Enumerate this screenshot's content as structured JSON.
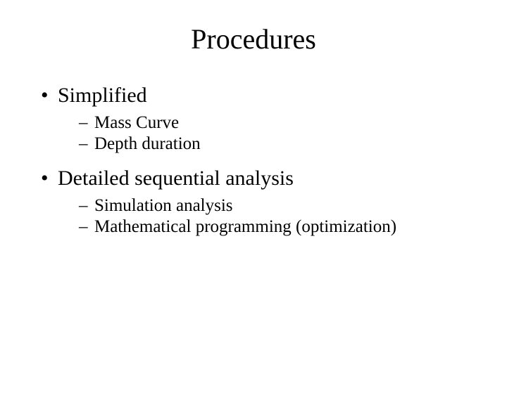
{
  "slide": {
    "title": "Procedures",
    "items": [
      {
        "label": "Simplified",
        "sub": [
          "Mass Curve",
          "Depth duration"
        ]
      },
      {
        "label": "Detailed sequential analysis",
        "sub": [
          "Simulation analysis",
          "Mathematical programming (optimization)"
        ]
      }
    ]
  },
  "colors": {
    "background": "#ffffff",
    "text": "#000000"
  },
  "typography": {
    "title_fontsize": 40,
    "level1_fontsize": 30,
    "level2_fontsize": 25,
    "font_family": "Times New Roman"
  }
}
